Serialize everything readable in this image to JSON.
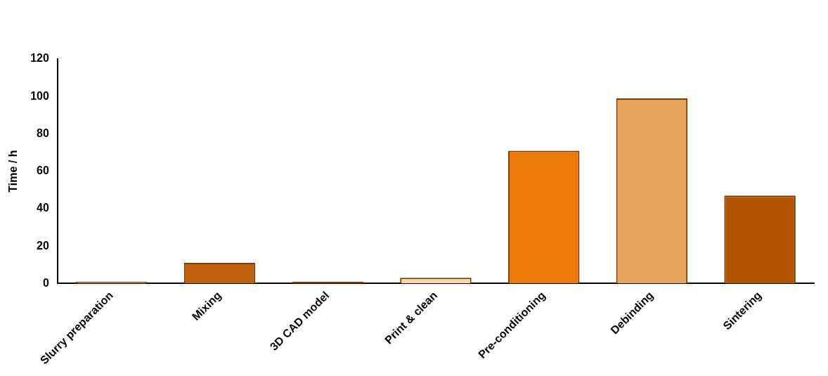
{
  "chart_data": {
    "type": "bar",
    "categories": [
      "Slurry preparation",
      "Mixing",
      "3D CAD model",
      "Print & clean",
      "Pre-conditioning",
      "Debinding",
      "Sintering"
    ],
    "values": [
      1,
      11,
      1,
      3,
      71,
      99,
      47
    ],
    "colors": [
      "#d9a36a",
      "#c0600b",
      "#8a3f00",
      "#fcd5a5",
      "#ec7a08",
      "#e8a35a",
      "#b35400"
    ],
    "y_label": "Time / h",
    "ylim": [
      0,
      120
    ],
    "yticks": [
      0,
      20,
      40,
      60,
      80,
      100,
      120
    ],
    "grid": false
  }
}
